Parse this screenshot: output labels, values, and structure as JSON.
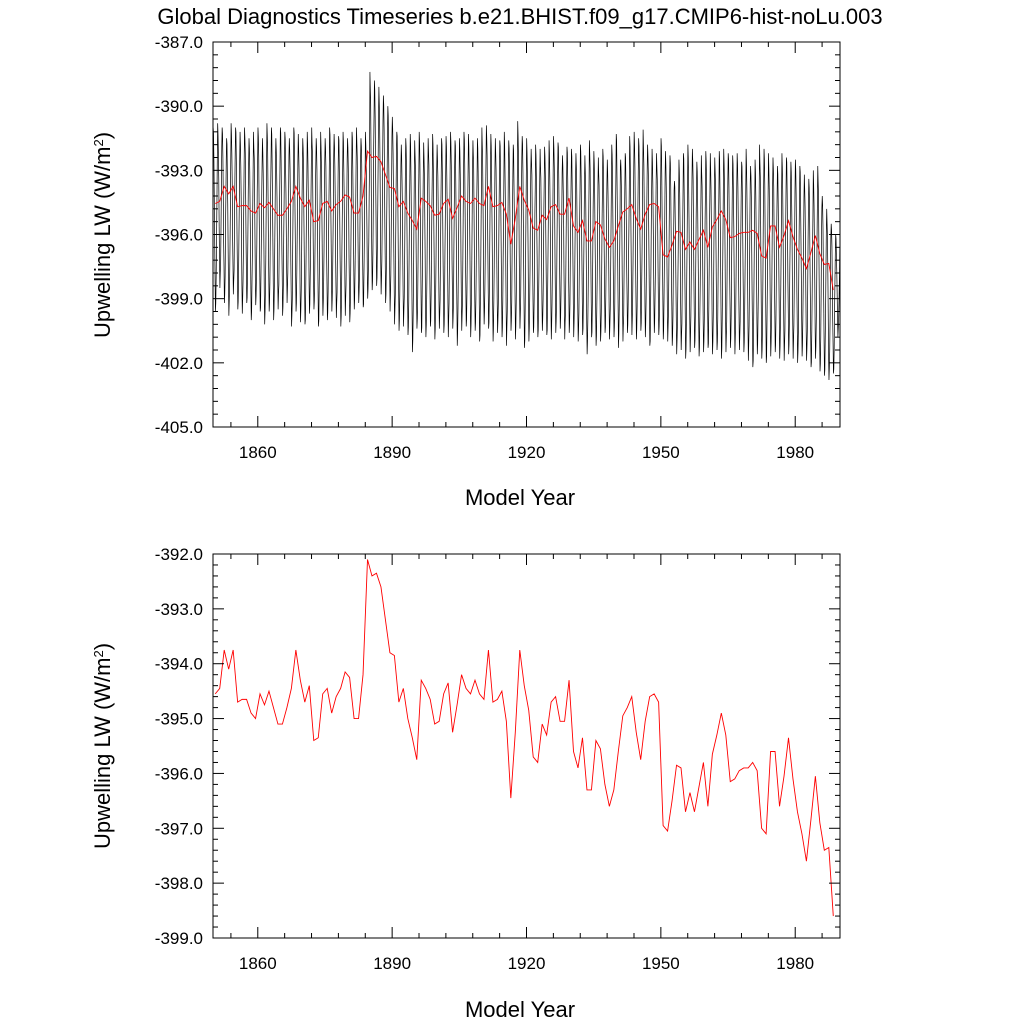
{
  "title": "Global Diagnostics Timeseries b.e21.BHIST.f09_g17.CMIP6-hist-noLu.003",
  "colors": {
    "monthly": "#000000",
    "annual": "#ff0000",
    "axes": "#000000"
  },
  "chart_data": [
    {
      "type": "line",
      "xlabel": "Model Year",
      "ylabel": "Upwelling LW (W/m²)",
      "ylabel_main": "Upwelling LW (W/m",
      "ylabel_sup": "2",
      "ylabel_tail": ")",
      "xlim": [
        1850,
        1990
      ],
      "ylim": [
        -405.0,
        -387.0
      ],
      "xticks": [
        1860,
        1890,
        1920,
        1950,
        1980
      ],
      "xtick_labels": [
        "1860",
        "1890",
        "1920",
        "1950",
        "1980"
      ],
      "yticks": [
        -405.0,
        -402.0,
        -399.0,
        -396.0,
        -393.0,
        -390.0,
        -387.0
      ],
      "ytick_labels": [
        "-405.0",
        "-402.0",
        "-399.0",
        "-396.0",
        "-393.0",
        "-390.0",
        "-387.0"
      ],
      "grid": false,
      "series": [
        {
          "role": "monthly",
          "color": "#000000",
          "x_start": 1850.0417,
          "x_step": 0.08333,
          "seasonal_max": [
            -391.0,
            -390.8,
            -391.0,
            -391.5,
            -390.8,
            -391.0,
            -391.2,
            -391.0,
            -391.5,
            -391.2,
            -391.0,
            -391.5,
            -390.8,
            -391.0,
            -391.5,
            -391.0,
            -391.2,
            -391.5,
            -391.0,
            -391.3,
            -391.5,
            -391.2,
            -391.0,
            -391.5,
            -391.2,
            -391.5,
            -391.0,
            -391.3,
            -391.4,
            -391.2,
            -391.5,
            -391.2,
            -391.0,
            -391.5,
            -391.2,
            -388.4,
            -388.8,
            -389.1,
            -389.5,
            -390.0,
            -390.5,
            -391.2,
            -391.8,
            -391.5,
            -391.3,
            -391.6,
            -391.2,
            -391.7,
            -391.5,
            -391.3,
            -391.8,
            -391.5,
            -391.4,
            -391.2,
            -391.6,
            -391.5,
            -391.2,
            -391.3,
            -391.6,
            -391.5,
            -391.0,
            -390.9,
            -391.3,
            -391.5,
            -391.6,
            -391.2,
            -391.6,
            -391.8,
            -390.7,
            -391.4,
            -391.5,
            -392.0,
            -391.8,
            -392.0,
            -391.9,
            -391.6,
            -391.4,
            -391.7,
            -392.3,
            -391.9,
            -392.0,
            -392.2,
            -391.8,
            -392.3,
            -391.6,
            -392.1,
            -392.4,
            -392.0,
            -392.5,
            -391.8,
            -391.3,
            -392.5,
            -392.2,
            -391.4,
            -391.2,
            -391.5,
            -391.1,
            -391.8,
            -392.0,
            -392.2,
            -391.5,
            -392.1,
            -392.3,
            -393.5,
            -392.5,
            -392.2,
            -391.8,
            -392.0,
            -392.6,
            -392.3,
            -392.1,
            -392.2,
            -392.4,
            -392.1,
            -392.0,
            -392.2,
            -392.3,
            -392.2,
            -392.6,
            -392.0,
            -392.8,
            -392.5,
            -391.8,
            -392.0,
            -392.2,
            -392.4,
            -392.8,
            -392.2,
            -392.4,
            -392.6,
            -392.5,
            -392.8,
            -393.2,
            -393.4,
            -393.0,
            -392.8,
            -394.2,
            -394.8,
            -395.5,
            -396.0
          ],
          "seasonal_min": [
            -399.6,
            -398.5,
            -399.2,
            -399.8,
            -398.8,
            -399.5,
            -399.7,
            -399.2,
            -400.0,
            -399.3,
            -399.6,
            -400.2,
            -399.6,
            -400.0,
            -399.5,
            -399.8,
            -399.2,
            -400.3,
            -399.6,
            -400.1,
            -400.2,
            -399.7,
            -399.5,
            -400.3,
            -399.8,
            -400.0,
            -399.6,
            -399.9,
            -400.3,
            -399.8,
            -400.1,
            -399.5,
            -399.2,
            -399.4,
            -399.0,
            -398.6,
            -398.4,
            -398.8,
            -399.2,
            -399.6,
            -400.2,
            -400.5,
            -400.3,
            -400.7,
            -401.5,
            -400.4,
            -400.6,
            -400.8,
            -400.3,
            -400.9,
            -400.4,
            -400.6,
            -400.8,
            -400.4,
            -401.2,
            -400.5,
            -400.3,
            -400.8,
            -400.5,
            -401.0,
            -400.2,
            -400.4,
            -401.0,
            -400.6,
            -400.8,
            -401.2,
            -400.5,
            -400.9,
            -400.4,
            -401.3,
            -401.0,
            -400.6,
            -400.8,
            -400.5,
            -400.7,
            -400.9,
            -400.6,
            -400.4,
            -400.9,
            -400.6,
            -400.8,
            -401.0,
            -400.7,
            -401.6,
            -400.8,
            -401.2,
            -401.0,
            -400.6,
            -400.9,
            -400.8,
            -401.3,
            -401.0,
            -400.6,
            -400.7,
            -400.9,
            -400.5,
            -400.8,
            -401.2,
            -400.6,
            -400.7,
            -400.9,
            -401.0,
            -401.2,
            -401.6,
            -401.4,
            -401.8,
            -401.5,
            -401.3,
            -401.7,
            -401.5,
            -401.3,
            -401.6,
            -401.4,
            -401.8,
            -401.5,
            -401.3,
            -401.6,
            -401.4,
            -401.5,
            -401.9,
            -402.2,
            -401.6,
            -401.8,
            -402.0,
            -401.7,
            -401.5,
            -401.8,
            -401.9,
            -401.6,
            -401.8,
            -402.0,
            -401.7,
            -401.9,
            -402.2,
            -401.8,
            -402.4,
            -402.6,
            -402.8,
            -402.5,
            -400.8
          ],
          "note_values": "monthly global-mean series; each model year peaks (near seasonal_max) in one season and dips (near seasonal_min) in the other"
        },
        {
          "role": "annual",
          "color": "#ff0000",
          "x_start": 1850.5,
          "x_step": 1,
          "values": [
            -394.55,
            -394.45,
            -393.75,
            -394.1,
            -393.75,
            -394.7,
            -394.65,
            -394.65,
            -394.9,
            -395.0,
            -394.55,
            -394.75,
            -394.5,
            -394.8,
            -395.1,
            -395.1,
            -394.8,
            -394.45,
            -393.75,
            -394.3,
            -394.7,
            -394.4,
            -395.4,
            -395.35,
            -394.55,
            -394.45,
            -394.9,
            -394.6,
            -394.45,
            -394.15,
            -394.25,
            -395.0,
            -395.0,
            -394.2,
            -392.1,
            -392.4,
            -392.35,
            -392.6,
            -393.2,
            -393.8,
            -393.85,
            -394.7,
            -394.45,
            -395.0,
            -395.35,
            -395.75,
            -394.3,
            -394.45,
            -394.65,
            -395.1,
            -395.05,
            -394.55,
            -394.35,
            -395.25,
            -394.75,
            -394.2,
            -394.45,
            -394.55,
            -394.3,
            -394.55,
            -394.65,
            -393.75,
            -394.7,
            -394.65,
            -394.5,
            -395.05,
            -396.45,
            -395.25,
            -393.75,
            -394.4,
            -394.85,
            -395.7,
            -395.8,
            -395.1,
            -395.3,
            -394.7,
            -394.6,
            -395.05,
            -395.05,
            -394.3,
            -395.6,
            -395.9,
            -395.35,
            -396.3,
            -396.3,
            -395.4,
            -395.55,
            -396.2,
            -396.6,
            -396.3,
            -395.6,
            -394.95,
            -394.8,
            -394.6,
            -395.25,
            -395.75,
            -395.05,
            -394.6,
            -394.55,
            -394.7,
            -396.95,
            -397.05,
            -396.5,
            -395.85,
            -395.9,
            -396.7,
            -396.35,
            -396.7,
            -396.25,
            -395.8,
            -396.6,
            -395.65,
            -395.3,
            -394.9,
            -395.3,
            -396.15,
            -396.1,
            -395.95,
            -395.9,
            -395.9,
            -395.8,
            -395.95,
            -397.0,
            -397.1,
            -395.6,
            -395.6,
            -396.6,
            -396.05,
            -395.35,
            -396.1,
            -396.7,
            -397.1,
            -397.6,
            -396.85,
            -396.05,
            -396.9,
            -397.4,
            -397.35,
            -398.6
          ]
        }
      ]
    },
    {
      "type": "line",
      "xlabel": "Model Year",
      "ylabel": "Upwelling LW (W/m²)",
      "ylabel_main": "Upwelling LW (W/m",
      "ylabel_sup": "2",
      "ylabel_tail": ")",
      "xlim": [
        1850,
        1990
      ],
      "ylim": [
        -399.0,
        -392.0
      ],
      "xticks": [
        1860,
        1890,
        1920,
        1950,
        1980
      ],
      "xtick_labels": [
        "1860",
        "1890",
        "1920",
        "1950",
        "1980"
      ],
      "yticks": [
        -399.0,
        -398.0,
        -397.0,
        -396.0,
        -395.0,
        -394.0,
        -393.0,
        -392.0
      ],
      "ytick_labels": [
        "-399.0",
        "-398.0",
        "-397.0",
        "-396.0",
        "-395.0",
        "-394.0",
        "-393.0",
        "-392.0"
      ],
      "grid": false,
      "series": [
        {
          "role": "annual",
          "color": "#ff0000",
          "x_start": 1850.5,
          "x_step": 1,
          "values": [
            -394.55,
            -394.45,
            -393.75,
            -394.1,
            -393.75,
            -394.7,
            -394.65,
            -394.65,
            -394.9,
            -395.0,
            -394.55,
            -394.75,
            -394.5,
            -394.8,
            -395.1,
            -395.1,
            -394.8,
            -394.45,
            -393.75,
            -394.3,
            -394.7,
            -394.4,
            -395.4,
            -395.35,
            -394.55,
            -394.45,
            -394.9,
            -394.6,
            -394.45,
            -394.15,
            -394.25,
            -395.0,
            -395.0,
            -394.2,
            -392.1,
            -392.4,
            -392.35,
            -392.6,
            -393.2,
            -393.8,
            -393.85,
            -394.7,
            -394.45,
            -395.0,
            -395.35,
            -395.75,
            -394.3,
            -394.45,
            -394.65,
            -395.1,
            -395.05,
            -394.55,
            -394.35,
            -395.25,
            -394.75,
            -394.2,
            -394.45,
            -394.55,
            -394.3,
            -394.55,
            -394.65,
            -393.75,
            -394.7,
            -394.65,
            -394.5,
            -395.05,
            -396.45,
            -395.25,
            -393.75,
            -394.4,
            -394.85,
            -395.7,
            -395.8,
            -395.1,
            -395.3,
            -394.7,
            -394.6,
            -395.05,
            -395.05,
            -394.3,
            -395.6,
            -395.9,
            -395.35,
            -396.3,
            -396.3,
            -395.4,
            -395.55,
            -396.2,
            -396.6,
            -396.3,
            -395.6,
            -394.95,
            -394.8,
            -394.6,
            -395.25,
            -395.75,
            -395.05,
            -394.6,
            -394.55,
            -394.7,
            -396.95,
            -397.05,
            -396.5,
            -395.85,
            -395.9,
            -396.7,
            -396.35,
            -396.7,
            -396.25,
            -395.8,
            -396.6,
            -395.65,
            -395.3,
            -394.9,
            -395.3,
            -396.15,
            -396.1,
            -395.95,
            -395.9,
            -395.9,
            -395.8,
            -395.95,
            -397.0,
            -397.1,
            -395.6,
            -395.6,
            -396.6,
            -396.05,
            -395.35,
            -396.1,
            -396.7,
            -397.1,
            -397.6,
            -396.85,
            -396.05,
            -396.9,
            -397.4,
            -397.35,
            -398.6
          ]
        }
      ]
    }
  ]
}
